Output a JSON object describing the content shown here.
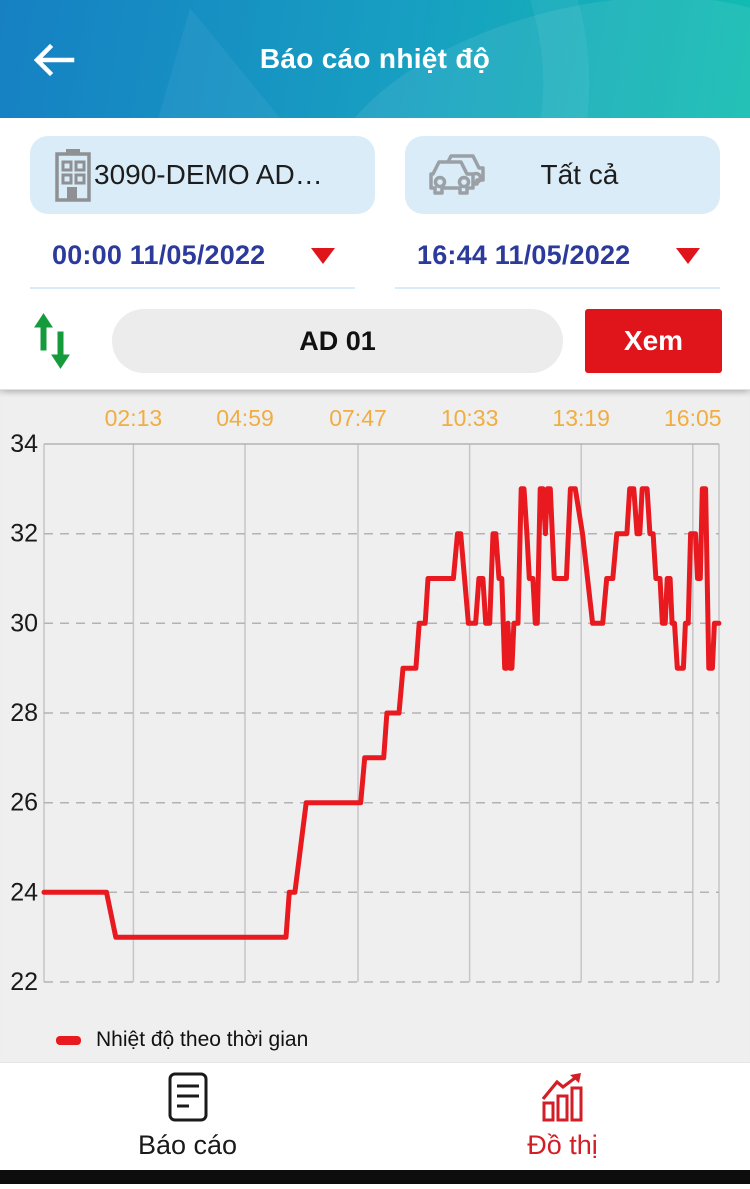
{
  "header": {
    "title": "Báo cáo nhiệt độ"
  },
  "filters": {
    "company_label": "3090-DEMO AD…",
    "vehicle_label": "Tất cả",
    "start_datetime": "00:00 11/05/2022",
    "end_datetime": "16:44 11/05/2022",
    "device_label": "AD 01",
    "view_button_label": "Xem"
  },
  "chart_data": {
    "type": "line",
    "title": "",
    "legend": "Nhiệt độ theo thời gian",
    "xlabel": "",
    "ylabel": "",
    "x_tick_labels": [
      "02:13",
      "04:59",
      "07:47",
      "10:33",
      "13:19",
      "16:05"
    ],
    "x_tick_hours": [
      2.2167,
      4.9833,
      7.7833,
      10.55,
      13.3167,
      16.0833
    ],
    "x_range_hours": [
      0,
      16.7333
    ],
    "y_ticks": [
      22,
      24,
      26,
      28,
      30,
      32,
      34
    ],
    "ylim": [
      22,
      34
    ],
    "grid": "on",
    "legend_position": "bottom-left",
    "line_color": "#e8191f",
    "series": [
      {
        "name": "Nhiệt độ theo thời gian",
        "points": [
          [
            0,
            24
          ],
          [
            1.55,
            24
          ],
          [
            1.78,
            23
          ],
          [
            6.0,
            23
          ],
          [
            6.08,
            24
          ],
          [
            6.22,
            24
          ],
          [
            6.5,
            26
          ],
          [
            7.85,
            26
          ],
          [
            7.95,
            27
          ],
          [
            8.42,
            27
          ],
          [
            8.5,
            28
          ],
          [
            8.8,
            28
          ],
          [
            8.9,
            29
          ],
          [
            9.22,
            29
          ],
          [
            9.3,
            30
          ],
          [
            9.45,
            30
          ],
          [
            9.52,
            31
          ],
          [
            10.15,
            31
          ],
          [
            10.25,
            32
          ],
          [
            10.33,
            32
          ],
          [
            10.52,
            30
          ],
          [
            10.7,
            30
          ],
          [
            10.78,
            31
          ],
          [
            10.88,
            31
          ],
          [
            10.95,
            30
          ],
          [
            11.05,
            30
          ],
          [
            11.13,
            32
          ],
          [
            11.2,
            32
          ],
          [
            11.28,
            31
          ],
          [
            11.35,
            31
          ],
          [
            11.42,
            29
          ],
          [
            11.47,
            29
          ],
          [
            11.5,
            30
          ],
          [
            11.55,
            29
          ],
          [
            11.6,
            29
          ],
          [
            11.65,
            30
          ],
          [
            11.75,
            30
          ],
          [
            11.83,
            33
          ],
          [
            11.9,
            33
          ],
          [
            11.97,
            32
          ],
          [
            12.03,
            31
          ],
          [
            12.12,
            31
          ],
          [
            12.18,
            30
          ],
          [
            12.23,
            30
          ],
          [
            12.3,
            33
          ],
          [
            12.37,
            33
          ],
          [
            12.43,
            32
          ],
          [
            12.48,
            33
          ],
          [
            12.55,
            33
          ],
          [
            12.6,
            32
          ],
          [
            12.65,
            31
          ],
          [
            12.95,
            31
          ],
          [
            13.05,
            33
          ],
          [
            13.17,
            33
          ],
          [
            13.35,
            32
          ],
          [
            13.6,
            30
          ],
          [
            13.85,
            30
          ],
          [
            13.95,
            31
          ],
          [
            14.1,
            31
          ],
          [
            14.2,
            32
          ],
          [
            14.45,
            32
          ],
          [
            14.52,
            33
          ],
          [
            14.62,
            33
          ],
          [
            14.7,
            32
          ],
          [
            14.77,
            32
          ],
          [
            14.83,
            33
          ],
          [
            14.95,
            33
          ],
          [
            15.02,
            32
          ],
          [
            15.1,
            32
          ],
          [
            15.17,
            31
          ],
          [
            15.27,
            31
          ],
          [
            15.33,
            30
          ],
          [
            15.4,
            30
          ],
          [
            15.45,
            31
          ],
          [
            15.52,
            31
          ],
          [
            15.57,
            30
          ],
          [
            15.63,
            30
          ],
          [
            15.7,
            29
          ],
          [
            15.85,
            29
          ],
          [
            15.9,
            30
          ],
          [
            15.97,
            30
          ],
          [
            16.03,
            32
          ],
          [
            16.15,
            32
          ],
          [
            16.2,
            31
          ],
          [
            16.27,
            31
          ],
          [
            16.32,
            33
          ],
          [
            16.4,
            33
          ],
          [
            16.48,
            29
          ],
          [
            16.57,
            29
          ],
          [
            16.62,
            30
          ],
          [
            16.73,
            30
          ]
        ]
      }
    ]
  },
  "nav": {
    "report_label": "Báo cáo",
    "graph_label": "Đồ thị",
    "active_tab": "Đồ thị"
  },
  "colors": {
    "header_gradient_start": "#1680c3",
    "header_gradient_end": "#12bdb0",
    "chip_bg": "#d9ecf8",
    "date_text": "#2b3a9b",
    "accent_red": "#e0151b",
    "chart_line": "#e8191f",
    "x_label_orange": "#f0ad42",
    "sort_green": "#169b3c",
    "section_bg": "#efeff0",
    "nav_active": "#d21e26"
  }
}
